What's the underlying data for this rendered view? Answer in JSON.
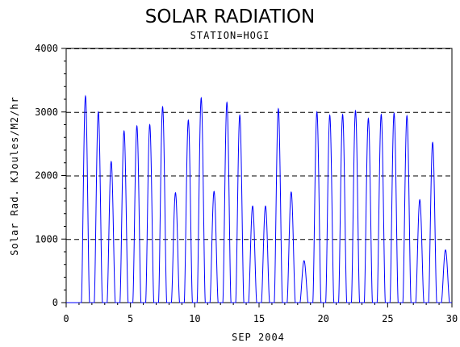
{
  "chart_data": {
    "type": "line",
    "title": "SOLAR RADIATION",
    "subtitle": "STATION=HOGI",
    "xlabel": "SEP 2004",
    "ylabel": "Solar Rad. KJoules/M2/hr",
    "xlim": [
      0,
      30
    ],
    "ylim": [
      0,
      4000
    ],
    "x_ticks": [
      0,
      5,
      10,
      15,
      20,
      25,
      30
    ],
    "y_ticks": [
      0,
      1000,
      2000,
      3000,
      4000
    ],
    "grid": "horizontal dashed at y ticks",
    "series": [
      {
        "color": "#0000ff",
        "daily_peaks": [
          {
            "day": 1,
            "peak": 3250
          },
          {
            "day": 2,
            "peak": 3000
          },
          {
            "day": 3,
            "peak": 2220
          },
          {
            "day": 4,
            "peak": 2700
          },
          {
            "day": 5,
            "peak": 2780
          },
          {
            "day": 6,
            "peak": 2800
          },
          {
            "day": 7,
            "peak": 3080
          },
          {
            "day": 8,
            "peak": 1730
          },
          {
            "day": 9,
            "peak": 2870
          },
          {
            "day": 10,
            "peak": 3220
          },
          {
            "day": 11,
            "peak": 1750
          },
          {
            "day": 12,
            "peak": 3150
          },
          {
            "day": 13,
            "peak": 2950
          },
          {
            "day": 14,
            "peak": 1520
          },
          {
            "day": 15,
            "peak": 1520
          },
          {
            "day": 16,
            "peak": 3050
          },
          {
            "day": 17,
            "peak": 1740
          },
          {
            "day": 18,
            "peak": 660
          },
          {
            "day": 19,
            "peak": 3000
          },
          {
            "day": 20,
            "peak": 2950
          },
          {
            "day": 21,
            "peak": 2960
          },
          {
            "day": 22,
            "peak": 3020
          },
          {
            "day": 23,
            "peak": 2900
          },
          {
            "day": 24,
            "peak": 2960
          },
          {
            "day": 25,
            "peak": 2980
          },
          {
            "day": 26,
            "peak": 2940
          },
          {
            "day": 27,
            "peak": 1620
          },
          {
            "day": 28,
            "peak": 2520
          },
          {
            "day": 29,
            "peak": 830
          }
        ]
      }
    ]
  }
}
